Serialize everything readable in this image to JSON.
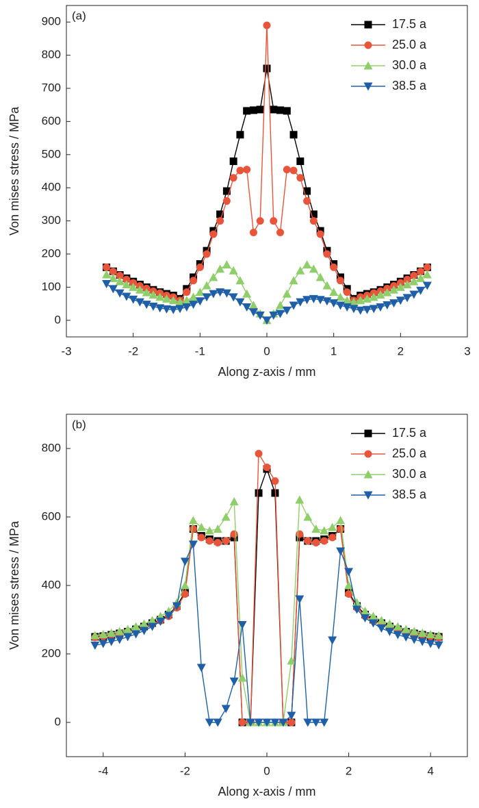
{
  "chart_data": [
    {
      "type": "line",
      "title": "(a)",
      "x_label": "Along z-axis / mm",
      "y_label": "Von mises stress / MPa",
      "x": [
        -2.4,
        -2.3,
        -2.2,
        -2.1,
        -2.0,
        -1.9,
        -1.8,
        -1.7,
        -1.6,
        -1.5,
        -1.4,
        -1.3,
        -1.2,
        -1.1,
        -1.0,
        -0.9,
        -0.8,
        -0.7,
        -0.6,
        -0.5,
        -0.4,
        -0.3,
        -0.2,
        -0.1,
        0,
        0.1,
        0.2,
        0.3,
        0.4,
        0.5,
        0.6,
        0.7,
        0.8,
        0.9,
        1.0,
        1.1,
        1.2,
        1.3,
        1.4,
        1.5,
        1.6,
        1.7,
        1.8,
        1.9,
        2.0,
        2.1,
        2.2,
        2.3,
        2.4
      ],
      "series": [
        {
          "name": "17.5 a",
          "color": "#000000",
          "marker": "square",
          "values": [
            160,
            148,
            137,
            127,
            117,
            108,
            100,
            92,
            85,
            80,
            75,
            65,
            95,
            130,
            170,
            210,
            270,
            320,
            390,
            480,
            560,
            632,
            634,
            636,
            760,
            636,
            634,
            632,
            560,
            480,
            390,
            320,
            270,
            210,
            170,
            130,
            95,
            65,
            75,
            80,
            85,
            92,
            100,
            108,
            117,
            127,
            137,
            148,
            160
          ]
        },
        {
          "name": "25.0 a",
          "color": "#e8553a",
          "marker": "circle",
          "values": [
            160,
            147,
            135,
            123,
            113,
            104,
            96,
            88,
            82,
            75,
            70,
            60,
            85,
            120,
            160,
            200,
            260,
            300,
            360,
            430,
            452,
            455,
            265,
            300,
            890,
            300,
            265,
            455,
            452,
            430,
            360,
            300,
            260,
            200,
            160,
            120,
            85,
            60,
            70,
            75,
            82,
            88,
            96,
            104,
            113,
            123,
            135,
            147,
            160
          ]
        },
        {
          "name": "30.0 a",
          "color": "#8fce6b",
          "marker": "triangle-up",
          "values": [
            138,
            127,
            117,
            108,
            100,
            92,
            84,
            77,
            70,
            65,
            60,
            55,
            60,
            70,
            85,
            105,
            130,
            155,
            168,
            150,
            120,
            80,
            45,
            20,
            0,
            20,
            45,
            80,
            120,
            150,
            168,
            155,
            130,
            105,
            85,
            70,
            60,
            55,
            60,
            65,
            70,
            77,
            84,
            92,
            100,
            108,
            117,
            127,
            138
          ]
        },
        {
          "name": "38.5 a",
          "color": "#1f5fa8",
          "marker": "triangle-down",
          "values": [
            110,
            95,
            82,
            72,
            63,
            55,
            48,
            42,
            37,
            34,
            32,
            35,
            40,
            48,
            58,
            70,
            80,
            85,
            82,
            70,
            55,
            40,
            25,
            15,
            0,
            15,
            20,
            30,
            45,
            55,
            62,
            65,
            62,
            58,
            52,
            45,
            40,
            35,
            30,
            32,
            35,
            40,
            46,
            52,
            60,
            68,
            78,
            90,
            105
          ]
        }
      ],
      "xlim": [
        -3,
        3
      ],
      "xticks": [
        -3,
        -2,
        -1,
        0,
        1,
        2,
        3
      ],
      "ylim": [
        -50,
        950
      ],
      "yticks": [
        0,
        100,
        200,
        300,
        400,
        500,
        600,
        700,
        800,
        900
      ],
      "legend": "upper right"
    },
    {
      "type": "line",
      "title": "(b)",
      "x_label": "Along x-axis / mm",
      "y_label": "Von mises stress / MPa",
      "x": [
        -4.2,
        -4.0,
        -3.8,
        -3.6,
        -3.4,
        -3.2,
        -3.0,
        -2.8,
        -2.6,
        -2.4,
        -2.2,
        -2.0,
        -1.8,
        -1.6,
        -1.4,
        -1.2,
        -1.0,
        -0.8,
        -0.6,
        -0.4,
        -0.2,
        0,
        0.2,
        0.4,
        0.6,
        0.8,
        1.0,
        1.2,
        1.4,
        1.6,
        1.8,
        2.0,
        2.2,
        2.4,
        2.6,
        2.8,
        3.0,
        3.2,
        3.4,
        3.6,
        3.8,
        4.0,
        4.2
      ],
      "series": [
        {
          "name": "17.5 a",
          "color": "#000000",
          "marker": "square",
          "values": [
            250,
            252,
            256,
            260,
            265,
            272,
            280,
            290,
            300,
            315,
            340,
            380,
            565,
            545,
            535,
            530,
            530,
            540,
            0,
            0,
            670,
            740,
            670,
            0,
            0,
            540,
            530,
            530,
            535,
            545,
            565,
            380,
            340,
            315,
            300,
            290,
            280,
            272,
            265,
            260,
            256,
            252,
            250
          ]
        },
        {
          "name": "25.0 a",
          "color": "#e8553a",
          "marker": "circle",
          "values": [
            248,
            251,
            255,
            259,
            264,
            270,
            278,
            287,
            297,
            310,
            335,
            375,
            565,
            540,
            530,
            525,
            530,
            550,
            0,
            0,
            785,
            745,
            705,
            0,
            0,
            550,
            530,
            525,
            530,
            540,
            565,
            375,
            335,
            310,
            297,
            287,
            278,
            270,
            264,
            259,
            255,
            251,
            248
          ]
        },
        {
          "name": "30.0 a",
          "color": "#8fce6b",
          "marker": "triangle-up",
          "values": [
            254,
            257,
            261,
            266,
            272,
            280,
            288,
            298,
            310,
            325,
            350,
            400,
            590,
            570,
            560,
            565,
            600,
            645,
            130,
            0,
            0,
            0,
            0,
            0,
            180,
            650,
            600,
            565,
            560,
            570,
            590,
            400,
            350,
            325,
            310,
            298,
            288,
            280,
            272,
            266,
            261,
            257,
            254
          ]
        },
        {
          "name": "38.5 a",
          "color": "#1f5fa8",
          "marker": "triangle-down",
          "values": [
            225,
            230,
            236,
            242,
            250,
            258,
            268,
            280,
            295,
            312,
            340,
            470,
            520,
            160,
            0,
            0,
            40,
            120,
            285,
            0,
            0,
            0,
            0,
            0,
            20,
            360,
            0,
            0,
            0,
            240,
            500,
            440,
            330,
            305,
            290,
            275,
            265,
            256,
            249,
            242,
            236,
            230,
            226
          ]
        }
      ],
      "xlim": [
        -4.9,
        4.9
      ],
      "xticks": [
        -4,
        -2,
        0,
        2,
        4
      ],
      "ylim": [
        -100,
        900
      ],
      "yticks": [
        0,
        200,
        400,
        600,
        800
      ],
      "legend": "upper right"
    }
  ]
}
